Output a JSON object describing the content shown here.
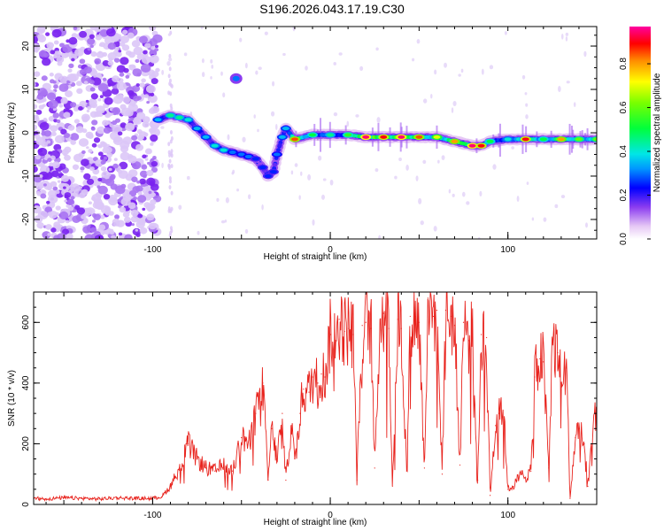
{
  "title": "S196.2026.043.17.19.C30",
  "chart_data": [
    {
      "type": "heatmap",
      "name": "spectrogram",
      "xlabel": "Height of straight line (km)",
      "ylabel": "Frequency (Hz)",
      "xlim": [
        -167,
        150
      ],
      "ylim": [
        -24.5,
        24.5
      ],
      "xticks": [
        -100,
        0,
        100
      ],
      "yticks": [
        -20,
        -10,
        0,
        10,
        20
      ],
      "colorbar": {
        "label": "Normalized spectral amplitude",
        "range": [
          0,
          0.97
        ],
        "ticks": [
          0.0,
          0.2,
          0.4,
          0.6,
          0.8
        ]
      },
      "noise_region_x": [
        -167,
        -97
      ],
      "feature_isolated_blob": {
        "x": -53,
        "y": 12.5,
        "amplitude": 0.3
      },
      "ridge": {
        "x": [
          -97,
          -90,
          -85,
          -80,
          -75,
          -70,
          -65,
          -60,
          -55,
          -50,
          -46,
          -42,
          -38,
          -35,
          -32,
          -30,
          -27,
          -25,
          -20,
          -10,
          0,
          10,
          20,
          30,
          40,
          50,
          60,
          70,
          80,
          85,
          90,
          100,
          110,
          120,
          130,
          140,
          150
        ],
        "y": [
          3,
          4,
          3.5,
          3,
          1,
          -1,
          -3,
          -4,
          -4.5,
          -5,
          -5.5,
          -6,
          -8,
          -10,
          -9,
          -5,
          -1,
          1,
          -1.5,
          -0.5,
          -0.5,
          -0.5,
          -1,
          -1,
          -1,
          -1,
          -1,
          -2,
          -3,
          -3,
          -2,
          -1.5,
          -1.5,
          -1.5,
          -1.5,
          -1.5,
          -1.5
        ],
        "amplitude": [
          0.35,
          0.45,
          0.45,
          0.4,
          0.35,
          0.35,
          0.4,
          0.4,
          0.3,
          0.3,
          0.3,
          0.25,
          0.25,
          0.25,
          0.25,
          0.3,
          0.35,
          0.35,
          0.85,
          0.5,
          0.45,
          0.55,
          0.95,
          0.9,
          0.95,
          0.85,
          0.7,
          0.8,
          0.95,
          0.9,
          0.5,
          0.4,
          0.9,
          0.5,
          0.8,
          0.6,
          0.6
        ]
      }
    },
    {
      "type": "line",
      "name": "snr",
      "xlabel": "Height of straight line (km)",
      "ylabel": "SNR (10 * v/v)",
      "xlim": [
        -167,
        150
      ],
      "ylim": [
        0,
        700
      ],
      "xticks": [
        -100,
        0,
        100
      ],
      "yticks": [
        0,
        200,
        400,
        600
      ],
      "color": "#e8231d",
      "series": [
        {
          "name": "SNR",
          "x": [
            -167,
            -160,
            -150,
            -140,
            -130,
            -120,
            -110,
            -100,
            -95,
            -90,
            -85,
            -80,
            -75,
            -70,
            -65,
            -60,
            -55,
            -50,
            -45,
            -42,
            -38,
            -35,
            -33,
            -30,
            -27,
            -25,
            -22,
            -20,
            -17,
            -15,
            -12,
            -10,
            -7,
            -5,
            -3,
            0,
            3,
            5,
            8,
            10,
            13,
            15,
            18,
            20,
            23,
            25,
            28,
            30,
            33,
            35,
            38,
            40,
            43,
            45,
            48,
            50,
            53,
            55,
            58,
            60,
            63,
            65,
            68,
            70,
            73,
            75,
            78,
            80,
            83,
            85,
            88,
            90,
            93,
            95,
            98,
            100,
            103,
            105,
            108,
            110,
            113,
            115,
            118,
            120,
            123,
            125,
            128,
            130,
            133,
            135,
            138,
            140,
            143,
            145,
            148,
            150
          ],
          "y": [
            20,
            18,
            22,
            20,
            18,
            22,
            20,
            20,
            25,
            60,
            120,
            200,
            150,
            120,
            110,
            130,
            110,
            220,
            200,
            300,
            400,
            80,
            250,
            150,
            300,
            80,
            260,
            150,
            300,
            380,
            370,
            420,
            400,
            430,
            420,
            560,
            540,
            610,
            570,
            580,
            560,
            80,
            590,
            600,
            580,
            120,
            610,
            630,
            580,
            60,
            610,
            580,
            110,
            620,
            620,
            600,
            120,
            680,
            620,
            640,
            100,
            640,
            620,
            590,
            130,
            600,
            540,
            560,
            80,
            560,
            550,
            30,
            260,
            300,
            280,
            50,
            60,
            80,
            100,
            90,
            110,
            420,
            480,
            470,
            120,
            540,
            500,
            400,
            450,
            20,
            220,
            250,
            200,
            60,
            250,
            300
          ]
        }
      ]
    }
  ]
}
